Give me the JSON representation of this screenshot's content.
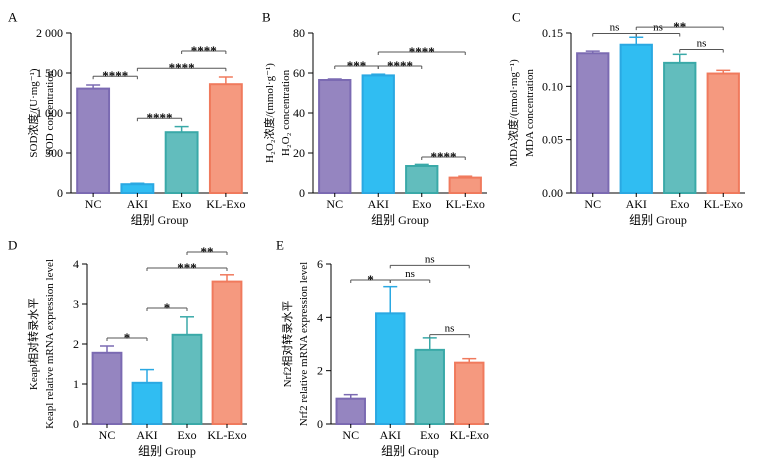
{
  "figure": {
    "colors": {
      "NC": "#7b6ab2",
      "AKI": "#2aa8e2",
      "Exo": "#3aa9a8",
      "KL-Exo": "#f07a5d"
    },
    "fills": {
      "NC": "#9585c0",
      "AKI": "#30bdf2",
      "Exo": "#62bdbd",
      "KL-Exo": "#f5997f"
    }
  },
  "chart_data": [
    {
      "panel": "A",
      "type": "bar",
      "categories": [
        "NC",
        "AKI",
        "Exo",
        "KL-Exo"
      ],
      "values": [
        1305,
        110,
        760,
        1360
      ],
      "errors": [
        45,
        12,
        70,
        90
      ],
      "xlabel": "组别 Group",
      "ylabel_lines": [
        "SOD浓度/(U·mg⁻¹)",
        "SOD concentration"
      ],
      "ylim": [
        0,
        2000
      ],
      "yticks": [
        0,
        500,
        1000,
        1500,
        2000
      ],
      "ytick_labels": [
        "0",
        "500",
        "1 000",
        "1 500",
        "2 000"
      ],
      "significance": [
        {
          "from": "NC",
          "to": "AKI",
          "label": "****",
          "y": 1460
        },
        {
          "from": "AKI",
          "to": "Exo",
          "label": "****",
          "y": 935
        },
        {
          "from": "AKI",
          "to": "KL-Exo",
          "label": "****",
          "y": 1560
        },
        {
          "from": "Exo",
          "to": "KL-Exo",
          "label": "****",
          "y": 1775
        }
      ]
    },
    {
      "panel": "B",
      "type": "bar",
      "categories": [
        "NC",
        "AKI",
        "Exo",
        "KL-Exo"
      ],
      "values": [
        56.5,
        58.8,
        13.5,
        7.7
      ],
      "errors": [
        0.5,
        0.6,
        0.8,
        0.7
      ],
      "xlabel": "组别 Group",
      "ylabel_lines": [
        "H₂O₂浓度/(mmol·g⁻¹)",
        "H₂O₂ concentration"
      ],
      "ylim": [
        0,
        80
      ],
      "yticks": [
        0,
        20,
        40,
        60,
        80
      ],
      "ytick_labels": [
        "0",
        "20",
        "40",
        "60",
        "80"
      ],
      "significance": [
        {
          "from": "NC",
          "to": "AKI",
          "label": "***",
          "y": 63.5
        },
        {
          "from": "AKI",
          "to": "Exo",
          "label": "****",
          "y": 63.5
        },
        {
          "from": "AKI",
          "to": "KL-Exo",
          "label": "****",
          "y": 70.5
        },
        {
          "from": "Exo",
          "to": "KL-Exo",
          "label": "****",
          "y": 18
        }
      ]
    },
    {
      "panel": "C",
      "type": "bar",
      "categories": [
        "NC",
        "AKI",
        "Exo",
        "KL-Exo"
      ],
      "values": [
        0.131,
        0.139,
        0.122,
        0.112
      ],
      "errors": [
        0.002,
        0.007,
        0.008,
        0.003
      ],
      "xlabel": "组别 Group",
      "ylabel_lines": [
        "MDA浓度/(nmol·mg⁻¹)",
        "MDA concentration"
      ],
      "ylim": [
        0,
        0.15
      ],
      "yticks": [
        0,
        0.05,
        0.1,
        0.15
      ],
      "ytick_labels": [
        "0.00",
        "0.05",
        "0.10",
        "0.15"
      ],
      "significance": [
        {
          "from": "NC",
          "to": "AKI",
          "label": "ns",
          "y": 0.1495
        },
        {
          "from": "AKI",
          "to": "Exo",
          "label": "ns",
          "y": 0.1495
        },
        {
          "from": "AKI",
          "to": "KL-Exo",
          "label": "**",
          "y": 0.1555
        },
        {
          "from": "Exo",
          "to": "KL-Exo",
          "label": "ns",
          "y": 0.1345
        }
      ]
    },
    {
      "panel": "D",
      "type": "bar",
      "categories": [
        "NC",
        "AKI",
        "Exo",
        "KL-Exo"
      ],
      "values": [
        1.78,
        1.03,
        2.23,
        3.56
      ],
      "errors": [
        0.17,
        0.33,
        0.45,
        0.17
      ],
      "xlabel": "组别 Group",
      "ylabel_lines": [
        "Keapl相对转录水平",
        "Keapl relative mRNA expression level"
      ],
      "ylim": [
        0,
        4
      ],
      "yticks": [
        0,
        1,
        2,
        3,
        4
      ],
      "ytick_labels": [
        "0",
        "1",
        "2",
        "3",
        "4"
      ],
      "significance": [
        {
          "from": "NC",
          "to": "AKI",
          "label": "*",
          "y": 2.15
        },
        {
          "from": "AKI",
          "to": "Exo",
          "label": "*",
          "y": 2.9
        },
        {
          "from": "AKI",
          "to": "KL-Exo",
          "label": "***",
          "y": 3.9
        },
        {
          "from": "Exo",
          "to": "KL-Exo",
          "label": "**",
          "y": 4.3
        }
      ]
    },
    {
      "panel": "E",
      "type": "bar",
      "categories": [
        "NC",
        "AKI",
        "Exo",
        "KL-Exo"
      ],
      "values": [
        0.95,
        4.15,
        2.78,
        2.3
      ],
      "errors": [
        0.15,
        1.0,
        0.45,
        0.15
      ],
      "xlabel": "组别 Group",
      "ylabel_lines": [
        "Nrf2相对转录水平",
        "Nrf2 relative mRNA expression level"
      ],
      "ylim": [
        0,
        6
      ],
      "yticks": [
        0,
        2,
        4,
        6
      ],
      "ytick_labels": [
        "0",
        "2",
        "4",
        "6"
      ],
      "significance": [
        {
          "from": "NC",
          "to": "AKI",
          "label": "*",
          "y": 5.4
        },
        {
          "from": "AKI",
          "to": "Exo",
          "label": "ns",
          "y": 5.4
        },
        {
          "from": "AKI",
          "to": "KL-Exo",
          "label": "ns",
          "y": 5.95
        },
        {
          "from": "Exo",
          "to": "KL-Exo",
          "label": "ns",
          "y": 3.35
        }
      ]
    }
  ]
}
